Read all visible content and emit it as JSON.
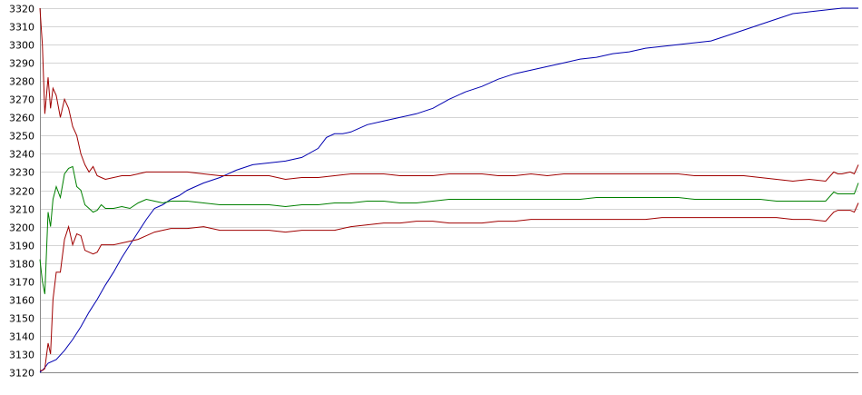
{
  "chart_data": {
    "type": "line",
    "title": "",
    "xlabel": "",
    "ylabel": "",
    "ylim": [
      3120,
      3320
    ],
    "xlim": [
      0,
      100
    ],
    "grid": true,
    "y_ticks": [
      "3320",
      "3310",
      "3300",
      "3290",
      "3280",
      "3270",
      "3260",
      "3250",
      "3240",
      "3230",
      "3220",
      "3210",
      "3200",
      "3190",
      "3180",
      "3170",
      "3160",
      "3150",
      "3140",
      "3130",
      "3120"
    ],
    "series": [
      {
        "color": "#0000b0",
        "x": [
          0,
          0.5,
          1,
          2,
          3,
          4,
          5,
          6,
          7,
          8,
          9,
          10,
          11,
          12,
          13,
          14,
          15,
          16,
          17,
          18,
          19,
          20,
          22,
          24,
          26,
          28,
          30,
          32,
          34,
          35,
          36,
          37,
          38,
          40,
          42,
          44,
          46,
          48,
          50,
          52,
          54,
          56,
          58,
          60,
          62,
          64,
          66,
          68,
          70,
          72,
          74,
          76,
          78,
          80,
          82,
          84,
          86,
          88,
          90,
          92,
          94,
          96,
          98,
          100
        ],
        "values": [
          3120,
          3122,
          3125,
          3127,
          3132,
          3138,
          3145,
          3153,
          3160,
          3168,
          3175,
          3183,
          3190,
          3197,
          3204,
          3210,
          3212,
          3215,
          3217,
          3220,
          3222,
          3224,
          3227,
          3231,
          3234,
          3235,
          3236,
          3238,
          3243,
          3249,
          3251,
          3251,
          3252,
          3256,
          3258,
          3260,
          3262,
          3265,
          3270,
          3274,
          3277,
          3281,
          3284,
          3286,
          3288,
          3290,
          3292,
          3293,
          3295,
          3296,
          3298,
          3299,
          3300,
          3301,
          3302,
          3305,
          3308,
          3311,
          3314,
          3317,
          3318,
          3319,
          3320,
          3320
        ]
      },
      {
        "color": "#a00000",
        "x": [
          0,
          0.3,
          0.6,
          1,
          1.3,
          1.6,
          2,
          2.5,
          3,
          3.5,
          4,
          4.5,
          5,
          5.5,
          6,
          6.5,
          7,
          7.5,
          8,
          9,
          10,
          11,
          12,
          13,
          14,
          15,
          16,
          18,
          20,
          22,
          24,
          26,
          28,
          30,
          32,
          34,
          36,
          38,
          40,
          42,
          44,
          46,
          48,
          50,
          52,
          54,
          56,
          58,
          60,
          62,
          64,
          66,
          68,
          70,
          72,
          74,
          76,
          78,
          80,
          82,
          84,
          86,
          88,
          90,
          92,
          94,
          96,
          97,
          97.5,
          98,
          99,
          99.5,
          100
        ],
        "values": [
          3320,
          3300,
          3262,
          3282,
          3265,
          3276,
          3272,
          3260,
          3270,
          3265,
          3255,
          3250,
          3240,
          3234,
          3230,
          3233,
          3228,
          3227,
          3226,
          3227,
          3228,
          3228,
          3229,
          3230,
          3230,
          3230,
          3230,
          3230,
          3229,
          3228,
          3228,
          3228,
          3228,
          3226,
          3227,
          3227,
          3228,
          3229,
          3229,
          3229,
          3228,
          3228,
          3228,
          3229,
          3229,
          3229,
          3228,
          3228,
          3229,
          3228,
          3229,
          3229,
          3229,
          3229,
          3229,
          3229,
          3229,
          3229,
          3228,
          3228,
          3228,
          3228,
          3227,
          3226,
          3225,
          3226,
          3225,
          3230,
          3229,
          3229,
          3230,
          3229,
          3234
        ]
      },
      {
        "color": "#008000",
        "x": [
          0,
          0.3,
          0.6,
          1,
          1.3,
          1.6,
          2,
          2.5,
          3,
          3.5,
          4,
          4.5,
          5,
          5.5,
          6,
          6.5,
          7,
          7.5,
          8,
          9,
          10,
          11,
          12,
          13,
          14,
          15,
          16,
          18,
          20,
          22,
          24,
          26,
          28,
          30,
          32,
          34,
          36,
          38,
          40,
          42,
          44,
          46,
          48,
          50,
          52,
          54,
          56,
          58,
          60,
          62,
          64,
          66,
          68,
          70,
          72,
          74,
          76,
          78,
          80,
          82,
          84,
          86,
          88,
          90,
          92,
          94,
          96,
          97,
          97.5,
          98,
          99,
          99.5,
          100
        ],
        "values": [
          3182,
          3170,
          3163,
          3208,
          3200,
          3215,
          3222,
          3216,
          3229,
          3232,
          3233,
          3222,
          3220,
          3212,
          3210,
          3208,
          3209,
          3212,
          3210,
          3210,
          3211,
          3210,
          3213,
          3215,
          3214,
          3213,
          3214,
          3214,
          3213,
          3212,
          3212,
          3212,
          3212,
          3211,
          3212,
          3212,
          3213,
          3213,
          3214,
          3214,
          3213,
          3213,
          3214,
          3215,
          3215,
          3215,
          3215,
          3215,
          3215,
          3215,
          3215,
          3215,
          3216,
          3216,
          3216,
          3216,
          3216,
          3216,
          3215,
          3215,
          3215,
          3215,
          3215,
          3214,
          3214,
          3214,
          3214,
          3219,
          3218,
          3218,
          3218,
          3218,
          3224
        ]
      },
      {
        "color": "#a00000",
        "x": [
          0,
          0.3,
          0.6,
          1,
          1.3,
          1.6,
          2,
          2.5,
          3,
          3.5,
          4,
          4.5,
          5,
          5.5,
          6,
          6.5,
          7,
          7.5,
          8,
          9,
          10,
          11,
          12,
          13,
          14,
          15,
          16,
          18,
          20,
          22,
          24,
          26,
          28,
          30,
          32,
          34,
          36,
          38,
          40,
          42,
          44,
          46,
          48,
          50,
          52,
          54,
          56,
          58,
          60,
          62,
          64,
          66,
          68,
          70,
          72,
          74,
          76,
          78,
          80,
          82,
          84,
          86,
          88,
          90,
          92,
          94,
          96,
          97,
          97.5,
          98,
          99,
          99.5,
          100
        ],
        "values": [
          3121,
          3121,
          3122,
          3136,
          3130,
          3160,
          3175,
          3175,
          3193,
          3200,
          3190,
          3196,
          3195,
          3187,
          3186,
          3185,
          3186,
          3190,
          3190,
          3190,
          3191,
          3192,
          3193,
          3195,
          3197,
          3198,
          3199,
          3199,
          3200,
          3198,
          3198,
          3198,
          3198,
          3197,
          3198,
          3198,
          3198,
          3200,
          3201,
          3202,
          3202,
          3203,
          3203,
          3202,
          3202,
          3202,
          3203,
          3203,
          3204,
          3204,
          3204,
          3204,
          3204,
          3204,
          3204,
          3204,
          3205,
          3205,
          3205,
          3205,
          3205,
          3205,
          3205,
          3205,
          3204,
          3204,
          3203,
          3208,
          3209,
          3209,
          3209,
          3208,
          3213
        ]
      }
    ]
  }
}
